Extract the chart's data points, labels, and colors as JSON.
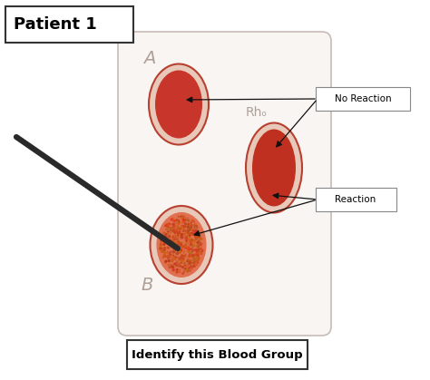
{
  "title": "Patient 1",
  "bottom_label": "Identify this Blood Group",
  "background_color": "#ffffff",
  "card_color": "#f8f5f3",
  "card_border_color": "#c8bbb8",
  "label_A": "A",
  "label_B": "B",
  "label_Rh": "Rhₒ",
  "well_ring_color": "#b84030",
  "well_ring_light": "#e8c8b8",
  "well_A_color": "#c8352a",
  "well_Rh_color": "#c03020",
  "well_B_outer_color": "#c03020",
  "well_B_inner_color": "#e07050",
  "annotation_no_reaction": "No Reaction",
  "annotation_reaction": "Reaction",
  "needle_color": "#2a2a2a",
  "label_color": "#b0a098",
  "arrow_color": "#111111"
}
